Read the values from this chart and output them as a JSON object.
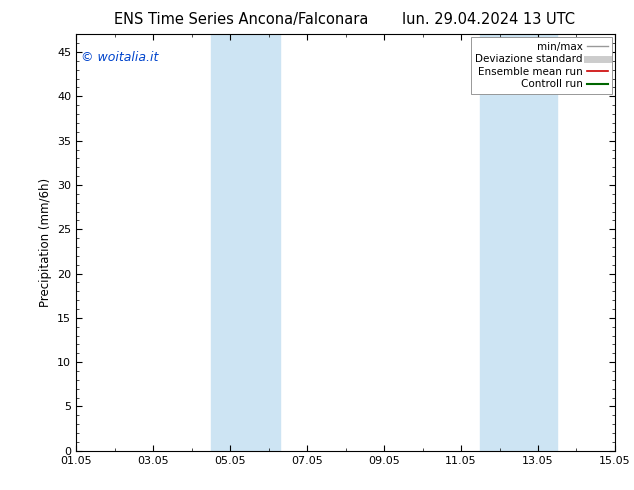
{
  "title_left": "ENS Time Series Ancona/Falconara",
  "title_right": "lun. 29.04.2024 13 UTC",
  "ylabel": "Precipitation (mm/6h)",
  "watermark": "© woitalia.it",
  "ylim": [
    0,
    47
  ],
  "ytick_max": 45,
  "xlim": [
    0,
    14
  ],
  "xtick_positions": [
    0,
    2,
    4,
    6,
    8,
    10,
    12,
    14
  ],
  "xtick_labels": [
    "01.05",
    "03.05",
    "05.05",
    "07.05",
    "09.05",
    "11.05",
    "13.05",
    "15.05"
  ],
  "ytick_positions": [
    0,
    5,
    10,
    15,
    20,
    25,
    30,
    35,
    40,
    45
  ],
  "shaded_bands": [
    {
      "xmin": 3.5,
      "xmax": 5.3,
      "color": "#cde4f3",
      "alpha": 1.0
    },
    {
      "xmin": 10.5,
      "xmax": 12.5,
      "color": "#cde4f3",
      "alpha": 1.0
    }
  ],
  "legend_items": [
    {
      "label": "min/max",
      "color": "#999999",
      "lw": 1.0,
      "type": "line"
    },
    {
      "label": "Deviazione standard",
      "color": "#cccccc",
      "lw": 5.0,
      "type": "line"
    },
    {
      "label": "Ensemble mean run",
      "color": "#cc0000",
      "lw": 1.2,
      "type": "line"
    },
    {
      "label": "Controll run",
      "color": "#006600",
      "lw": 1.5,
      "type": "line"
    }
  ],
  "background_color": "#ffffff",
  "plot_bg_color": "#ffffff",
  "watermark_color": "#0044cc",
  "title_fontsize": 10.5,
  "ylabel_fontsize": 8.5,
  "tick_fontsize": 8,
  "legend_fontsize": 7.5,
  "watermark_fontsize": 9
}
